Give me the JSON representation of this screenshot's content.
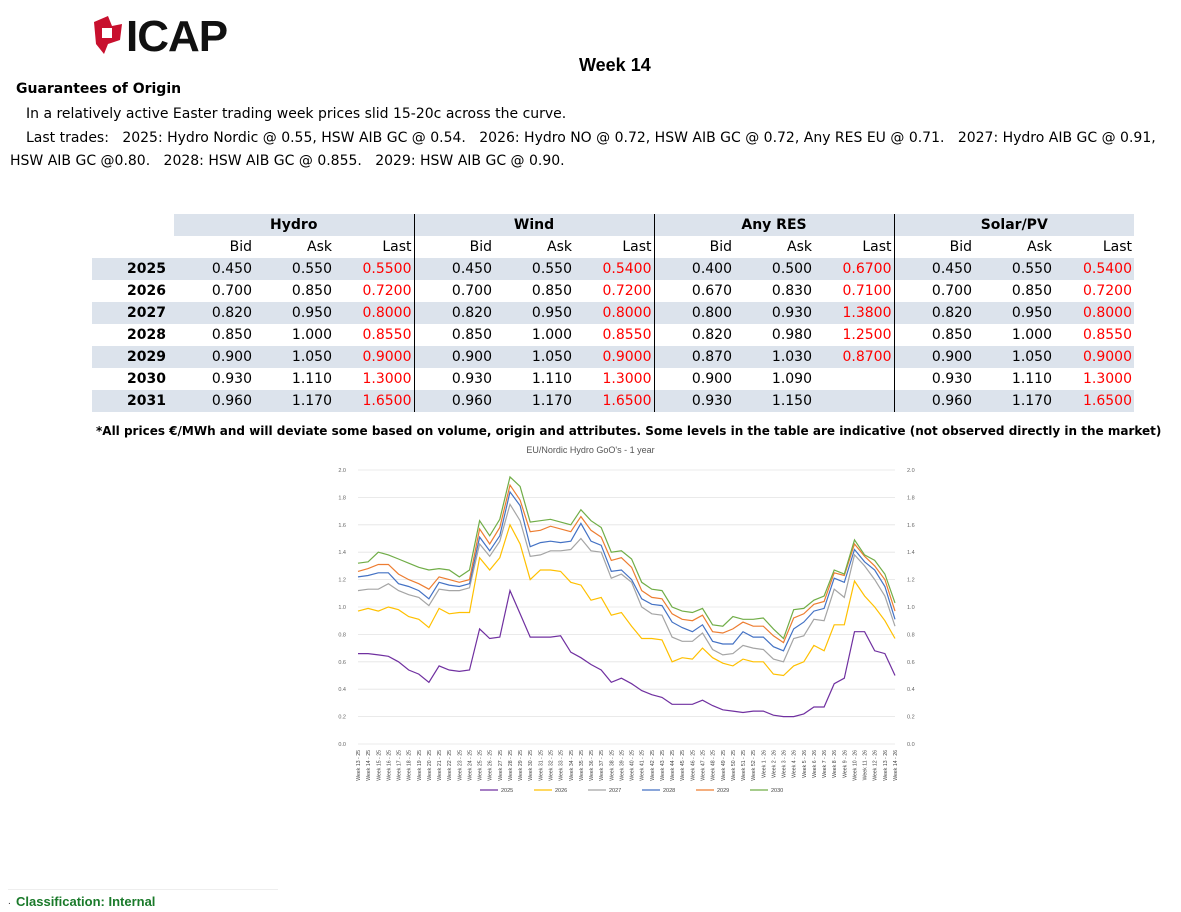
{
  "header": {
    "logo_text": "ICAP",
    "week_title": "Week 14",
    "section_title": "Guarantees of Origin"
  },
  "commentary": {
    "summary": "In a relatively active Easter trading week prices slid 15-20c across the curve.",
    "trades_label": "Last trades:",
    "trades": [
      "2025: Hydro Nordic @ 0.55, HSW AIB GC @ 0.54.",
      "2026: Hydro NO @ 0.72, HSW AIB GC @ 0.72, Any RES EU @ 0.71.",
      "2027: Hydro AIB GC @ 0.91, HSW AIB GC @0.80.",
      "2028: HSW AIB GC @ 0.855.",
      "2029: HSW AIB GC @ 0.90."
    ]
  },
  "table": {
    "groups": [
      "Hydro",
      "Wind",
      "Any RES",
      "Solar/PV"
    ],
    "columns": [
      "Bid",
      "Ask",
      "Last"
    ],
    "rows": [
      {
        "year": "2025",
        "cells": [
          [
            "0.450",
            "0.550",
            "0.5500"
          ],
          [
            "0.450",
            "0.550",
            "0.5400"
          ],
          [
            "0.400",
            "0.500",
            "0.6700"
          ],
          [
            "0.450",
            "0.550",
            "0.5400"
          ]
        ]
      },
      {
        "year": "2026",
        "cells": [
          [
            "0.700",
            "0.850",
            "0.7200"
          ],
          [
            "0.700",
            "0.850",
            "0.7200"
          ],
          [
            "0.670",
            "0.830",
            "0.7100"
          ],
          [
            "0.700",
            "0.850",
            "0.7200"
          ]
        ]
      },
      {
        "year": "2027",
        "cells": [
          [
            "0.820",
            "0.950",
            "0.8000"
          ],
          [
            "0.820",
            "0.950",
            "0.8000"
          ],
          [
            "0.800",
            "0.930",
            "1.3800"
          ],
          [
            "0.820",
            "0.950",
            "0.8000"
          ]
        ]
      },
      {
        "year": "2028",
        "cells": [
          [
            "0.850",
            "1.000",
            "0.8550"
          ],
          [
            "0.850",
            "1.000",
            "0.8550"
          ],
          [
            "0.820",
            "0.980",
            "1.2500"
          ],
          [
            "0.850",
            "1.000",
            "0.8550"
          ]
        ]
      },
      {
        "year": "2029",
        "cells": [
          [
            "0.900",
            "1.050",
            "0.9000"
          ],
          [
            "0.900",
            "1.050",
            "0.9000"
          ],
          [
            "0.870",
            "1.030",
            "0.8700"
          ],
          [
            "0.900",
            "1.050",
            "0.9000"
          ]
        ]
      },
      {
        "year": "2030",
        "cells": [
          [
            "0.930",
            "1.110",
            "1.3000"
          ],
          [
            "0.930",
            "1.110",
            "1.3000"
          ],
          [
            "0.900",
            "1.090",
            ""
          ],
          [
            "0.930",
            "1.110",
            "1.3000"
          ]
        ]
      },
      {
        "year": "2031",
        "cells": [
          [
            "0.960",
            "1.170",
            "1.6500"
          ],
          [
            "0.960",
            "1.170",
            "1.6500"
          ],
          [
            "0.930",
            "1.150",
            ""
          ],
          [
            "0.960",
            "1.170",
            "1.6500"
          ]
        ]
      }
    ],
    "last_color": "#ff0000",
    "header_bg": "#dce3ec"
  },
  "footnote": "*All prices €/MWh and will deviate some based on volume, origin and attributes. Some levels in the table are indicative (not observed directly in the market)",
  "chart_data": {
    "type": "line",
    "title": "EU/Nordic Hydro GoO's - 1 year",
    "xlabel": "",
    "ylabel": "",
    "ylim": [
      0,
      2.0
    ],
    "yticks": [
      "0.0",
      "0.2",
      "0.4",
      "0.6",
      "0.8",
      "1.0",
      "1.2",
      "1.4",
      "1.6",
      "1.8",
      "2.0"
    ],
    "grid": true,
    "legend_position": "bottom",
    "categories": [
      "Week 13 - 25",
      "Week 14 - 25",
      "Week 15 - 25",
      "Week 16 - 25",
      "Week 17 - 25",
      "Week 18 - 25",
      "Week 19 - 25",
      "Week 20 - 25",
      "Week 21 - 25",
      "Week 22 - 25",
      "Week 23 - 25",
      "Week 24 - 25",
      "Week 25 - 25",
      "Week 26 - 25",
      "Week 27 - 25",
      "Week 28 - 25",
      "Week 29 - 25",
      "Week 30 - 25",
      "Week 31 - 25",
      "Week 32 - 25",
      "Week 33 - 25",
      "Week 34 - 25",
      "Week 35 - 25",
      "Week 36 - 25",
      "Week 37 - 25",
      "Week 38 - 25",
      "Week 39 - 25",
      "Week 40 - 25",
      "Week 41 - 25",
      "Week 42 - 25",
      "Week 43 - 25",
      "Week 44 - 25",
      "Week 45 - 25",
      "Week 46 - 25",
      "Week 47 - 25",
      "Week 48 - 25",
      "Week 49 - 25",
      "Week 50 - 25",
      "Week 51 - 25",
      "Week 52 - 25",
      "Week 1 - 26",
      "Week 2 - 26",
      "Week 3 - 26",
      "Week 4 - 26",
      "Week 5 - 26",
      "Week 6 - 26",
      "Week 7 - 26",
      "Week 8 - 26",
      "Week 9 - 26",
      "Week 10 - 26",
      "Week 11 - 26",
      "Week 12 - 26",
      "Week 13 - 26",
      "Week 14 - 26"
    ],
    "series": [
      {
        "name": "2025",
        "color": "#7030a0",
        "values": [
          0.66,
          0.66,
          0.65,
          0.64,
          0.6,
          0.54,
          0.51,
          0.45,
          0.57,
          0.54,
          0.53,
          0.54,
          0.84,
          0.77,
          0.78,
          1.12,
          0.95,
          0.78,
          0.78,
          0.78,
          0.79,
          0.67,
          0.63,
          0.58,
          0.54,
          0.45,
          0.48,
          0.44,
          0.39,
          0.36,
          0.34,
          0.29,
          0.29,
          0.29,
          0.32,
          0.28,
          0.25,
          0.24,
          0.23,
          0.24,
          0.24,
          0.21,
          0.2,
          0.2,
          0.22,
          0.27,
          0.27,
          0.44,
          0.48,
          0.82,
          0.82,
          0.68,
          0.66,
          0.5
        ]
      },
      {
        "name": "2026",
        "color": "#ffc000",
        "values": [
          0.97,
          0.99,
          0.97,
          1.0,
          0.98,
          0.93,
          0.91,
          0.85,
          0.99,
          0.95,
          0.96,
          0.96,
          1.36,
          1.27,
          1.36,
          1.6,
          1.46,
          1.2,
          1.27,
          1.27,
          1.26,
          1.18,
          1.16,
          1.05,
          1.07,
          0.94,
          0.96,
          0.86,
          0.77,
          0.77,
          0.76,
          0.6,
          0.63,
          0.62,
          0.7,
          0.63,
          0.59,
          0.57,
          0.62,
          0.6,
          0.6,
          0.51,
          0.5,
          0.57,
          0.6,
          0.72,
          0.68,
          0.87,
          0.87,
          1.19,
          1.08,
          1.0,
          0.9,
          0.77
        ]
      },
      {
        "name": "2027",
        "color": "#a5a5a5",
        "values": [
          1.12,
          1.13,
          1.13,
          1.17,
          1.12,
          1.09,
          1.07,
          1.01,
          1.13,
          1.12,
          1.12,
          1.14,
          1.46,
          1.37,
          1.48,
          1.75,
          1.63,
          1.37,
          1.38,
          1.41,
          1.41,
          1.42,
          1.5,
          1.41,
          1.4,
          1.21,
          1.24,
          1.18,
          1.0,
          0.95,
          0.94,
          0.78,
          0.75,
          0.75,
          0.81,
          0.69,
          0.65,
          0.66,
          0.72,
          0.7,
          0.69,
          0.62,
          0.6,
          0.77,
          0.79,
          0.91,
          0.9,
          1.13,
          1.07,
          1.38,
          1.3,
          1.2,
          1.08,
          0.86
        ]
      },
      {
        "name": "2028",
        "color": "#4472c4",
        "values": [
          1.22,
          1.23,
          1.25,
          1.25,
          1.17,
          1.15,
          1.12,
          1.06,
          1.18,
          1.16,
          1.15,
          1.17,
          1.51,
          1.41,
          1.52,
          1.84,
          1.74,
          1.44,
          1.47,
          1.48,
          1.47,
          1.48,
          1.61,
          1.48,
          1.45,
          1.26,
          1.27,
          1.2,
          1.06,
          1.02,
          1.01,
          0.89,
          0.85,
          0.82,
          0.87,
          0.75,
          0.73,
          0.73,
          0.82,
          0.78,
          0.78,
          0.71,
          0.68,
          0.84,
          0.89,
          0.97,
          0.99,
          1.21,
          1.18,
          1.42,
          1.33,
          1.27,
          1.15,
          0.91
        ]
      },
      {
        "name": "2029",
        "color": "#ed7d31",
        "values": [
          1.26,
          1.28,
          1.31,
          1.31,
          1.24,
          1.2,
          1.17,
          1.13,
          1.22,
          1.2,
          1.18,
          1.2,
          1.57,
          1.46,
          1.58,
          1.89,
          1.78,
          1.55,
          1.56,
          1.59,
          1.57,
          1.55,
          1.66,
          1.56,
          1.51,
          1.34,
          1.36,
          1.29,
          1.12,
          1.07,
          1.06,
          0.95,
          0.91,
          0.9,
          0.94,
          0.82,
          0.81,
          0.84,
          0.89,
          0.86,
          0.86,
          0.79,
          0.74,
          0.92,
          0.95,
          1.02,
          1.04,
          1.25,
          1.23,
          1.46,
          1.37,
          1.3,
          1.2,
          0.97
        ]
      },
      {
        "name": "2030",
        "color": "#70ad47",
        "values": [
          1.32,
          1.33,
          1.4,
          1.38,
          1.35,
          1.32,
          1.29,
          1.27,
          1.28,
          1.27,
          1.22,
          1.27,
          1.63,
          1.52,
          1.64,
          1.95,
          1.88,
          1.62,
          1.63,
          1.64,
          1.62,
          1.6,
          1.71,
          1.63,
          1.58,
          1.4,
          1.41,
          1.35,
          1.18,
          1.13,
          1.12,
          1.0,
          0.97,
          0.96,
          0.99,
          0.87,
          0.86,
          0.93,
          0.91,
          0.91,
          0.92,
          0.84,
          0.77,
          0.98,
          0.99,
          1.05,
          1.08,
          1.27,
          1.24,
          1.49,
          1.38,
          1.34,
          1.24,
          1.03
        ]
      }
    ]
  },
  "footer": {
    "classification": "Classification: Internal",
    "marker": "."
  }
}
